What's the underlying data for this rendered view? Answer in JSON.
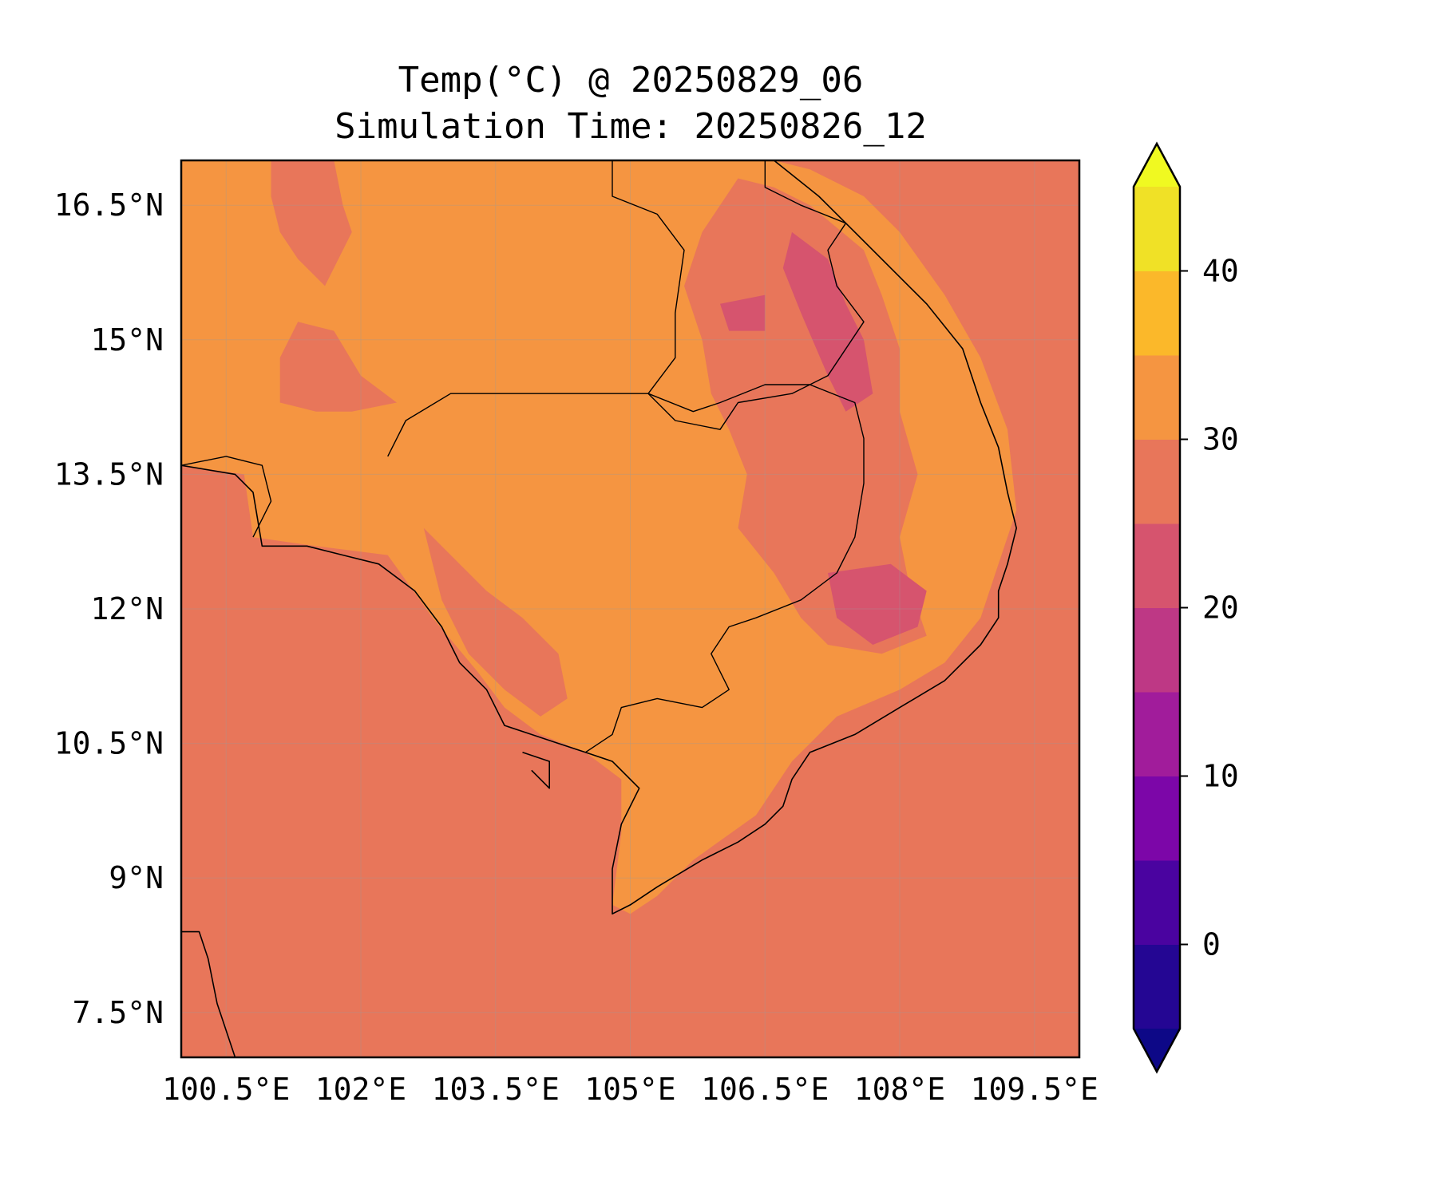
{
  "map": {
    "title_line1": "Temp(°C) @ 20250829_06",
    "title_line2": "Simulation Time: 20250826_12",
    "lon_range": [
      100.0,
      110.0
    ],
    "lat_range": [
      7.0,
      17.0
    ],
    "lon_ticks": [
      {
        "value": 100.5,
        "label": "100.5°E"
      },
      {
        "value": 102.0,
        "label": "102°E"
      },
      {
        "value": 103.5,
        "label": "103.5°E"
      },
      {
        "value": 105.0,
        "label": "105°E"
      },
      {
        "value": 106.5,
        "label": "106.5°E"
      },
      {
        "value": 108.0,
        "label": "108°E"
      },
      {
        "value": 109.5,
        "label": "109.5°E"
      }
    ],
    "lat_ticks": [
      {
        "value": 16.5,
        "label": "16.5°N"
      },
      {
        "value": 15.0,
        "label": "15°N"
      },
      {
        "value": 13.5,
        "label": "13.5°N"
      },
      {
        "value": 12.0,
        "label": "12°N"
      },
      {
        "value": 10.5,
        "label": "10.5°N"
      },
      {
        "value": 9.0,
        "label": "9°N"
      },
      {
        "value": 7.5,
        "label": "7.5°N"
      }
    ],
    "gridlines": true,
    "background_fill_color": "#e8765a"
  },
  "colorbar": {
    "min": -5,
    "max": 45,
    "extend": "both",
    "bands": [
      {
        "from": -5,
        "to": 0,
        "color": "#240693"
      },
      {
        "from": 0,
        "to": 5,
        "color": "#4a03a0"
      },
      {
        "from": 5,
        "to": 10,
        "color": "#7c06a8"
      },
      {
        "from": 10,
        "to": 15,
        "color": "#a11c9b"
      },
      {
        "from": 15,
        "to": 20,
        "color": "#be3885"
      },
      {
        "from": 20,
        "to": 25,
        "color": "#d6546e"
      },
      {
        "from": 25,
        "to": 30,
        "color": "#e8765a"
      },
      {
        "from": 30,
        "to": 35,
        "color": "#f59541"
      },
      {
        "from": 35,
        "to": 40,
        "color": "#fbb82a"
      },
      {
        "from": 40,
        "to": 45,
        "color": "#f0e126"
      }
    ],
    "under_color": "#0d0887",
    "over_color": "#f0f921",
    "ticks": [
      {
        "value": 0,
        "label": "0"
      },
      {
        "value": 10,
        "label": "10"
      },
      {
        "value": 20,
        "label": "20"
      },
      {
        "value": 30,
        "label": "30"
      },
      {
        "value": 40,
        "label": "40"
      }
    ]
  },
  "regions": [
    {
      "name": "land-warm-30-35",
      "band_color": "#f59541",
      "points": [
        [
          101.5,
          17.0
        ],
        [
          106.6,
          17.0
        ],
        [
          107.0,
          16.9
        ],
        [
          107.6,
          16.6
        ],
        [
          108.0,
          16.2
        ],
        [
          108.5,
          15.5
        ],
        [
          108.9,
          14.8
        ],
        [
          109.2,
          14.0
        ],
        [
          109.3,
          13.1
        ],
        [
          109.1,
          12.5
        ],
        [
          108.9,
          11.9
        ],
        [
          108.5,
          11.4
        ],
        [
          108.0,
          11.1
        ],
        [
          107.3,
          10.8
        ],
        [
          106.8,
          10.3
        ],
        [
          106.4,
          9.7
        ],
        [
          105.7,
          9.2
        ],
        [
          105.3,
          8.8
        ],
        [
          105.0,
          8.6
        ],
        [
          104.8,
          8.7
        ],
        [
          104.9,
          9.5
        ],
        [
          104.9,
          10.1
        ],
        [
          104.5,
          10.4
        ],
        [
          104.0,
          10.6
        ],
        [
          103.6,
          10.9
        ],
        [
          103.3,
          11.3
        ],
        [
          102.8,
          11.9
        ],
        [
          102.3,
          12.6
        ],
        [
          101.5,
          12.7
        ],
        [
          100.8,
          12.8
        ],
        [
          100.7,
          13.5
        ],
        [
          100.0,
          13.6
        ],
        [
          100.0,
          17.0
        ]
      ]
    },
    {
      "name": "land-cool-patch-west",
      "band_color": "#e8765a",
      "points": [
        [
          101.3,
          15.2
        ],
        [
          101.7,
          15.1
        ],
        [
          102.0,
          14.6
        ],
        [
          102.4,
          14.3
        ],
        [
          101.9,
          14.2
        ],
        [
          101.5,
          14.2
        ],
        [
          101.1,
          14.3
        ],
        [
          101.1,
          14.8
        ]
      ]
    },
    {
      "name": "land-cool-patch-north",
      "band_color": "#e8765a",
      "points": [
        [
          101.0,
          17.0
        ],
        [
          101.7,
          17.0
        ],
        [
          101.8,
          16.5
        ],
        [
          101.9,
          16.2
        ],
        [
          101.6,
          15.6
        ],
        [
          101.3,
          15.9
        ],
        [
          101.1,
          16.2
        ],
        [
          101.0,
          16.6
        ]
      ]
    },
    {
      "name": "land-cool-annamite",
      "band_color": "#e8765a",
      "points": [
        [
          106.2,
          16.8
        ],
        [
          106.6,
          16.7
        ],
        [
          107.0,
          16.5
        ],
        [
          107.6,
          16.0
        ],
        [
          107.8,
          15.5
        ],
        [
          108.0,
          14.9
        ],
        [
          108.0,
          14.2
        ],
        [
          108.2,
          13.5
        ],
        [
          108.0,
          12.8
        ],
        [
          108.1,
          12.3
        ],
        [
          108.3,
          11.7
        ],
        [
          107.8,
          11.5
        ],
        [
          107.2,
          11.6
        ],
        [
          106.9,
          11.9
        ],
        [
          106.6,
          12.4
        ],
        [
          106.2,
          12.9
        ],
        [
          106.3,
          13.5
        ],
        [
          106.1,
          14.0
        ],
        [
          105.9,
          14.4
        ],
        [
          105.8,
          15.0
        ],
        [
          105.6,
          15.6
        ],
        [
          105.8,
          16.2
        ]
      ]
    },
    {
      "name": "land-cool-cardamom",
      "band_color": "#e8765a",
      "points": [
        [
          102.7,
          12.9
        ],
        [
          103.1,
          12.5
        ],
        [
          103.4,
          12.2
        ],
        [
          103.8,
          11.9
        ],
        [
          104.2,
          11.5
        ],
        [
          104.3,
          11.0
        ],
        [
          104.0,
          10.8
        ],
        [
          103.6,
          11.1
        ],
        [
          103.2,
          11.5
        ],
        [
          102.9,
          12.1
        ],
        [
          102.8,
          12.5
        ]
      ]
    },
    {
      "name": "land-cool-15-20",
      "band_color": "#d6546e",
      "points": [
        [
          106.8,
          16.2
        ],
        [
          107.2,
          15.9
        ],
        [
          107.4,
          15.4
        ],
        [
          107.6,
          15.0
        ],
        [
          107.7,
          14.4
        ],
        [
          107.4,
          14.2
        ],
        [
          107.2,
          14.6
        ],
        [
          106.9,
          15.3
        ],
        [
          106.7,
          15.8
        ]
      ]
    },
    {
      "name": "land-cool-15-20-south",
      "band_color": "#d6546e",
      "points": [
        [
          107.2,
          12.4
        ],
        [
          107.9,
          12.5
        ],
        [
          108.3,
          12.2
        ],
        [
          108.2,
          11.8
        ],
        [
          107.7,
          11.6
        ],
        [
          107.3,
          11.9
        ]
      ]
    },
    {
      "name": "land-cool-15-20-small",
      "band_color": "#d6546e",
      "points": [
        [
          106.0,
          15.4
        ],
        [
          106.5,
          15.5
        ],
        [
          106.5,
          15.1
        ],
        [
          106.1,
          15.1
        ]
      ]
    }
  ],
  "coastlines": [
    {
      "name": "indochina-coast",
      "points": [
        [
          106.6,
          17.0
        ],
        [
          107.1,
          16.6
        ],
        [
          107.5,
          16.2
        ],
        [
          107.9,
          15.8
        ],
        [
          108.3,
          15.4
        ],
        [
          108.7,
          14.9
        ],
        [
          108.9,
          14.3
        ],
        [
          109.1,
          13.8
        ],
        [
          109.2,
          13.3
        ],
        [
          109.3,
          12.9
        ],
        [
          109.2,
          12.5
        ],
        [
          109.1,
          12.2
        ],
        [
          109.1,
          11.9
        ],
        [
          108.9,
          11.6
        ],
        [
          108.5,
          11.2
        ],
        [
          108.0,
          10.9
        ],
        [
          107.5,
          10.6
        ],
        [
          107.0,
          10.4
        ],
        [
          106.8,
          10.1
        ],
        [
          106.7,
          9.8
        ],
        [
          106.5,
          9.6
        ],
        [
          106.2,
          9.4
        ],
        [
          105.8,
          9.2
        ],
        [
          105.3,
          8.9
        ],
        [
          105.0,
          8.7
        ],
        [
          104.8,
          8.6
        ],
        [
          104.8,
          9.1
        ],
        [
          104.9,
          9.6
        ],
        [
          105.1,
          10.0
        ],
        [
          104.8,
          10.3
        ],
        [
          104.5,
          10.4
        ],
        [
          104.2,
          10.5
        ],
        [
          103.9,
          10.6
        ],
        [
          103.6,
          10.7
        ],
        [
          103.4,
          11.1
        ],
        [
          103.1,
          11.4
        ],
        [
          102.9,
          11.8
        ],
        [
          102.6,
          12.2
        ],
        [
          102.2,
          12.5
        ],
        [
          101.8,
          12.6
        ],
        [
          101.4,
          12.7
        ],
        [
          100.9,
          12.7
        ],
        [
          100.8,
          13.3
        ],
        [
          100.6,
          13.5
        ],
        [
          100.0,
          13.6
        ]
      ]
    },
    {
      "name": "malay-coast",
      "points": [
        [
          100.0,
          8.4
        ],
        [
          100.2,
          8.4
        ],
        [
          100.3,
          8.1
        ],
        [
          100.4,
          7.6
        ],
        [
          100.6,
          7.0
        ]
      ]
    },
    {
      "name": "phu-quoc",
      "points": [
        [
          103.8,
          10.4
        ],
        [
          104.1,
          10.3
        ],
        [
          104.1,
          10.0
        ],
        [
          103.9,
          10.2
        ]
      ]
    }
  ],
  "borders": [
    {
      "name": "cambodia-border",
      "points": [
        [
          102.3,
          13.7
        ],
        [
          102.5,
          14.1
        ],
        [
          103.0,
          14.4
        ],
        [
          103.6,
          14.4
        ],
        [
          104.2,
          14.4
        ],
        [
          104.8,
          14.4
        ],
        [
          105.2,
          14.4
        ],
        [
          105.7,
          14.2
        ],
        [
          106.0,
          14.3
        ],
        [
          106.5,
          14.5
        ],
        [
          107.0,
          14.5
        ],
        [
          107.5,
          14.3
        ],
        [
          107.6,
          13.9
        ],
        [
          107.6,
          13.4
        ],
        [
          107.5,
          12.8
        ],
        [
          107.3,
          12.4
        ],
        [
          106.9,
          12.1
        ],
        [
          106.4,
          11.9
        ],
        [
          106.1,
          11.8
        ],
        [
          105.9,
          11.5
        ],
        [
          106.1,
          11.1
        ],
        [
          105.8,
          10.9
        ],
        [
          105.3,
          11.0
        ],
        [
          104.9,
          10.9
        ],
        [
          104.8,
          10.6
        ],
        [
          104.5,
          10.4
        ]
      ]
    },
    {
      "name": "laos-border",
      "points": [
        [
          104.8,
          17.0
        ],
        [
          104.8,
          16.6
        ],
        [
          105.3,
          16.4
        ],
        [
          105.6,
          16.0
        ],
        [
          105.5,
          15.3
        ],
        [
          105.5,
          14.8
        ],
        [
          105.2,
          14.4
        ],
        [
          105.5,
          14.1
        ],
        [
          106.0,
          14.0
        ],
        [
          106.2,
          14.3
        ],
        [
          106.8,
          14.4
        ],
        [
          107.2,
          14.6
        ],
        [
          107.6,
          15.2
        ],
        [
          107.3,
          15.6
        ],
        [
          107.2,
          16.0
        ],
        [
          107.4,
          16.3
        ],
        [
          106.9,
          16.5
        ],
        [
          106.5,
          16.7
        ],
        [
          106.5,
          17.0
        ]
      ]
    },
    {
      "name": "thailand-cambodia-west",
      "points": [
        [
          100.0,
          13.6
        ],
        [
          100.5,
          13.7
        ],
        [
          100.9,
          13.6
        ],
        [
          101.0,
          13.2
        ],
        [
          100.8,
          12.8
        ]
      ]
    }
  ]
}
